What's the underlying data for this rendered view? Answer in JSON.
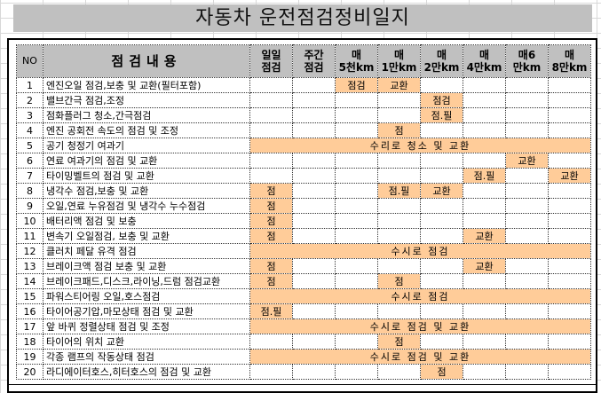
{
  "title": "자동차 운전점검정비일지",
  "colors": {
    "header_bg": "#C0C0C0",
    "highlight": "#FFCC99"
  },
  "headers": {
    "no": "NO",
    "content": "점검내용",
    "intervals": [
      "일일\n점검",
      "주간\n점검",
      "매\n5천km",
      "매\n1만km",
      "매\n2만km",
      "매\n4만km",
      "매6\n만km",
      "매\n8만km"
    ]
  },
  "rows": [
    {
      "no": "1",
      "content": "엔진오일 점검,보충 및 교환(필터포함)",
      "cells": [
        "",
        "",
        "점검",
        "교환",
        "",
        "",
        "",
        ""
      ]
    },
    {
      "no": "2",
      "content": "밸브간극 점검,조정",
      "cells": [
        "",
        "",
        "",
        "",
        "점검",
        "",
        "",
        ""
      ]
    },
    {
      "no": "3",
      "content": "점화플러그 청소,간극점검",
      "cells": [
        "",
        "",
        "",
        "",
        "점.필",
        "",
        "",
        ""
      ]
    },
    {
      "no": "4",
      "content": "엔진 공회전 속도의 점검 및 조정",
      "cells": [
        "",
        "",
        "",
        "점",
        "",
        "",
        "",
        ""
      ]
    },
    {
      "no": "5",
      "content": "공기 청정기 여과기",
      "span": "수리로 청소 및 교환"
    },
    {
      "no": "6",
      "content": "연료 여과기의 점검 및 교환",
      "cells": [
        "",
        "",
        "",
        "",
        "",
        "",
        "교환",
        ""
      ]
    },
    {
      "no": "7",
      "content": "타이밍벨트의 점검 및 교환",
      "cells": [
        "",
        "",
        "",
        "",
        "",
        "점.필",
        "",
        "교환"
      ]
    },
    {
      "no": "8",
      "content": "냉각수 점검,보충 및 교환",
      "cells": [
        "점",
        "",
        "",
        "점.필",
        "교환",
        "",
        "",
        ""
      ]
    },
    {
      "no": "9",
      "content": "오일,연료 누유점검 및 냉각수 누수점검",
      "cells": [
        "점",
        "",
        "",
        "",
        "",
        "",
        "",
        ""
      ]
    },
    {
      "no": "10",
      "content": "배터리액 점검 및 보충",
      "cells": [
        "점",
        "",
        "",
        "",
        "",
        "",
        "",
        ""
      ]
    },
    {
      "no": "11",
      "content": "변속기 오일점검, 보충 및 교환",
      "cells": [
        "점",
        "",
        "",
        "",
        "",
        "교환",
        "",
        ""
      ]
    },
    {
      "no": "12",
      "content": "클러치 페달 유격 점검",
      "span": "수시로 점검"
    },
    {
      "no": "13",
      "content": "브레이크액 점검 보충 및 교환",
      "cells": [
        "점",
        "",
        "",
        "",
        "",
        "교환",
        "",
        ""
      ]
    },
    {
      "no": "14",
      "content": "브레이크패드,디스크,라이닝,드럼 점검교환",
      "cells": [
        "점",
        "",
        "",
        "점",
        "",
        "",
        "",
        ""
      ]
    },
    {
      "no": "15",
      "content": "파워스티어링 오일,호스점검",
      "span": "수시로 점검"
    },
    {
      "no": "16",
      "content": "타이어공기압,마모상태 점검 및 교환",
      "cells": [
        "점.필",
        "",
        "",
        "",
        "",
        "",
        "",
        ""
      ]
    },
    {
      "no": "17",
      "content": "앞 바퀴 정렬상태 점검 및 조정",
      "span": "수시로 점검 및 교환"
    },
    {
      "no": "18",
      "content": "타이어의 위치 교환",
      "cells": [
        "",
        "",
        "",
        "점",
        "",
        "",
        "",
        ""
      ]
    },
    {
      "no": "19",
      "content": "각종 램프의 작동상태 점검",
      "span": "수시로 점검 및 교환"
    },
    {
      "no": "20",
      "content": "라디에이터호스,히터호스의 점검 및 교환",
      "cells": [
        "",
        "",
        "",
        "",
        "점",
        "",
        "",
        ""
      ]
    }
  ]
}
